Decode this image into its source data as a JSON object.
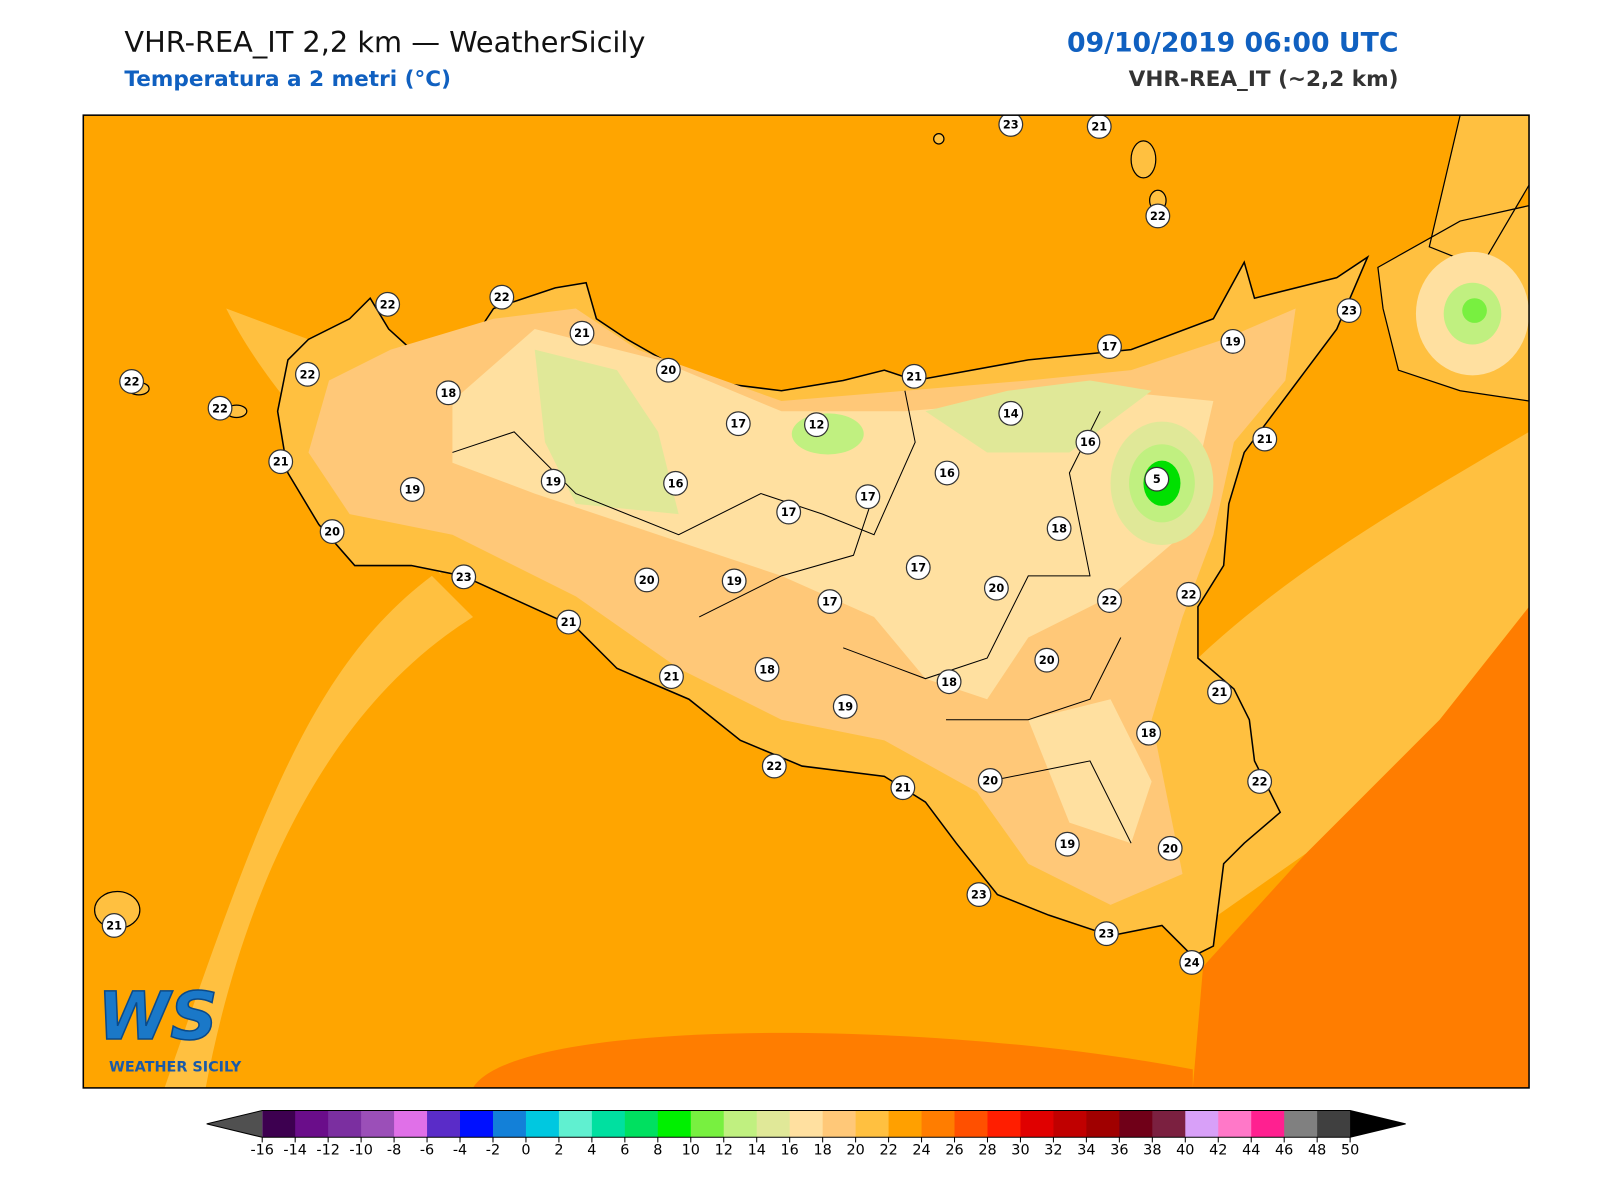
{
  "header": {
    "title": "VHR-REA_IT 2,2 km — WeatherSicily",
    "subtitle": "Temperatura a 2 metri (°C)",
    "date": "09/10/2019 06:00 UTC",
    "model": "VHR-REA_IT (~2,2 km)"
  },
  "logo": {
    "mark": "WS",
    "text": "WEATHER SICILY"
  },
  "stations": [
    23,
    21,
    22,
    22,
    22,
    21,
    20,
    22,
    22,
    18,
    22,
    21,
    19,
    20,
    23,
    19,
    16,
    17,
    12,
    17,
    17,
    21,
    17,
    19,
    23,
    14,
    16,
    16,
    5,
    21,
    18,
    17,
    20,
    19,
    17,
    21,
    20,
    22,
    22,
    20,
    21,
    18,
    19,
    18,
    21,
    18,
    22,
    21,
    20,
    22,
    19,
    20,
    23,
    23,
    24,
    21
  ],
  "colorbar": {
    "ticks": [
      -16,
      -14,
      -12,
      -10,
      -8,
      -6,
      -4,
      -2,
      0,
      2,
      4,
      6,
      8,
      10,
      12,
      14,
      16,
      18,
      20,
      22,
      24,
      26,
      28,
      30,
      32,
      34,
      36,
      38,
      40,
      42,
      44,
      46,
      48,
      50
    ],
    "colors": [
      "#3d0050",
      "#6a0d8a",
      "#7b2fa0",
      "#9b4fb8",
      "#e070e8",
      "#5a2cc8",
      "#0010ff",
      "#1380d8",
      "#00c8e0",
      "#60f0d0",
      "#00e0a0",
      "#00e060",
      "#00f000",
      "#78f040",
      "#c0f080",
      "#e0e898",
      "#ffe0a0",
      "#ffc878",
      "#ffc040",
      "#ffa000",
      "#ff7d00",
      "#ff5000",
      "#ff1e00",
      "#e00000",
      "#c00000",
      "#a00000",
      "#700018",
      "#7b2040",
      "#d8a0f8",
      "#ff78c8",
      "#ff2090",
      "#808080",
      "#404040"
    ],
    "under_color": "#505050",
    "over_color": "#000000"
  }
}
